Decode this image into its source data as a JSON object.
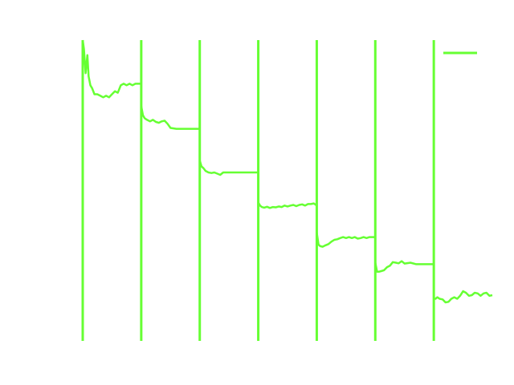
{
  "chart_data": {
    "type": "line",
    "title": "",
    "xlabel": "",
    "ylabel": "",
    "xlim": [
      0,
      7
    ],
    "ylim": [
      0,
      1
    ],
    "grid": false,
    "axes_visible": false,
    "legend": {
      "placement": "top-right",
      "entries": [
        {
          "label": "",
          "color": "#66ff33"
        }
      ]
    },
    "series": [
      {
        "color": "#66ff33",
        "segments": [
          {
            "x_start": 0.0,
            "x_end": 1.0,
            "start_spike": [
              0.0,
              1.0
            ],
            "x": [
              0.0,
              0.02,
              0.05,
              0.08,
              0.1,
              0.13,
              0.16,
              0.2,
              0.25,
              0.3,
              0.35,
              0.4,
              0.45,
              0.5,
              0.55,
              0.6,
              0.65,
              0.7,
              0.75,
              0.8,
              0.85,
              0.9,
              0.95,
              1.0
            ],
            "y": [
              1.0,
              0.97,
              0.89,
              0.95,
              0.88,
              0.85,
              0.84,
              0.82,
              0.82,
              0.815,
              0.81,
              0.815,
              0.81,
              0.82,
              0.83,
              0.825,
              0.85,
              0.855,
              0.85,
              0.855,
              0.85,
              0.855,
              0.855,
              0.855
            ]
          },
          {
            "x_start": 1.0,
            "x_end": 2.0,
            "start_spike": [
              0.0,
              1.0
            ],
            "x": [
              1.0,
              1.03,
              1.06,
              1.1,
              1.15,
              1.2,
              1.25,
              1.3,
              1.35,
              1.4,
              1.45,
              1.5,
              1.6,
              1.7,
              1.8,
              1.9,
              2.0
            ],
            "y": [
              0.78,
              0.75,
              0.74,
              0.735,
              0.73,
              0.735,
              0.728,
              0.725,
              0.73,
              0.732,
              0.722,
              0.708,
              0.705,
              0.705,
              0.705,
              0.705,
              0.705
            ]
          },
          {
            "x_start": 2.0,
            "x_end": 3.0,
            "start_spike": [
              0.0,
              1.0
            ],
            "x": [
              2.0,
              2.03,
              2.06,
              2.1,
              2.15,
              2.2,
              2.25,
              2.3,
              2.35,
              2.4,
              2.45,
              2.5,
              2.6,
              2.7,
              2.8,
              2.9,
              3.0
            ],
            "y": [
              0.6,
              0.58,
              0.575,
              0.565,
              0.56,
              0.558,
              0.56,
              0.556,
              0.552,
              0.56,
              0.56,
              0.56,
              0.56,
              0.56,
              0.56,
              0.56,
              0.56
            ]
          },
          {
            "x_start": 3.0,
            "x_end": 4.0,
            "start_spike": [
              0.0,
              1.0
            ],
            "x": [
              3.0,
              3.03,
              3.06,
              3.1,
              3.15,
              3.2,
              3.25,
              3.3,
              3.35,
              3.4,
              3.45,
              3.5,
              3.55,
              3.6,
              3.65,
              3.7,
              3.75,
              3.8,
              3.85,
              3.9,
              3.95,
              4.0
            ],
            "y": [
              0.46,
              0.45,
              0.445,
              0.443,
              0.446,
              0.442,
              0.445,
              0.444,
              0.447,
              0.445,
              0.45,
              0.447,
              0.45,
              0.452,
              0.448,
              0.452,
              0.454,
              0.45,
              0.455,
              0.455,
              0.457,
              0.45
            ]
          },
          {
            "x_start": 4.0,
            "x_end": 5.0,
            "start_spike": [
              0.0,
              1.0
            ],
            "x": [
              4.0,
              4.03,
              4.06,
              4.1,
              4.15,
              4.2,
              4.25,
              4.3,
              4.35,
              4.4,
              4.45,
              4.5,
              4.55,
              4.6,
              4.65,
              4.7,
              4.75,
              4.8,
              4.85,
              4.9,
              4.95,
              5.0
            ],
            "y": [
              0.36,
              0.32,
              0.315,
              0.313,
              0.318,
              0.322,
              0.33,
              0.336,
              0.338,
              0.342,
              0.345,
              0.342,
              0.345,
              0.342,
              0.345,
              0.34,
              0.342,
              0.345,
              0.342,
              0.345,
              0.345,
              0.345
            ]
          },
          {
            "x_start": 5.0,
            "x_end": 6.0,
            "start_spike": [
              0.0,
              1.0
            ],
            "x": [
              5.0,
              5.03,
              5.06,
              5.1,
              5.15,
              5.2,
              5.25,
              5.3,
              5.35,
              5.4,
              5.45,
              5.5,
              5.6,
              5.7,
              5.8,
              5.9,
              6.0
            ],
            "y": [
              0.26,
              0.23,
              0.23,
              0.232,
              0.235,
              0.245,
              0.25,
              0.262,
              0.26,
              0.258,
              0.265,
              0.257,
              0.26,
              0.255,
              0.255,
              0.255,
              0.255
            ]
          },
          {
            "x_start": 6.0,
            "x_end": 7.0,
            "start_spike": [
              0.0,
              1.0
            ],
            "x": [
              6.0,
              6.03,
              6.06,
              6.1,
              6.15,
              6.2,
              6.25,
              6.3,
              6.35,
              6.4,
              6.45,
              6.5,
              6.55,
              6.6,
              6.65,
              6.7,
              6.75,
              6.8,
              6.85,
              6.9,
              6.95,
              7.0
            ],
            "y": [
              0.14,
              0.14,
              0.145,
              0.14,
              0.138,
              0.128,
              0.13,
              0.14,
              0.145,
              0.14,
              0.15,
              0.165,
              0.16,
              0.15,
              0.152,
              0.16,
              0.158,
              0.15,
              0.158,
              0.16,
              0.15,
              0.152
            ]
          }
        ]
      }
    ]
  }
}
